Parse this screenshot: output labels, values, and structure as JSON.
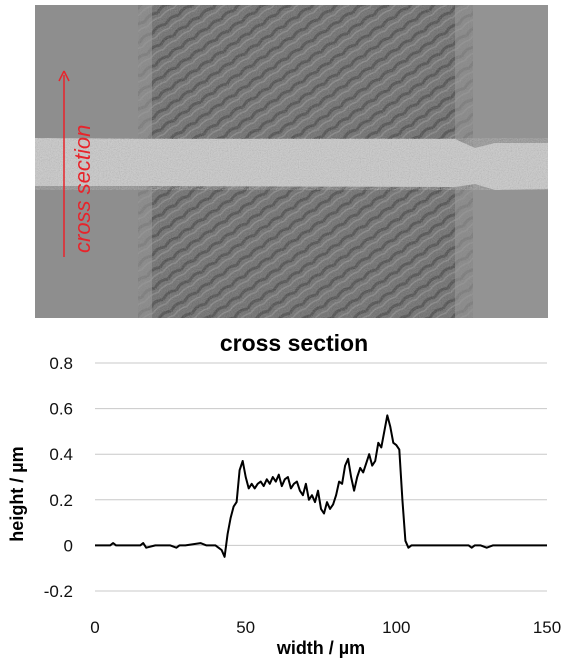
{
  "micrograph": {
    "annotation": "cross section",
    "annotation_color": "#e8242b",
    "background_color": "#8e8e8e",
    "track_color": "#6c6c6c",
    "band_color": "#c8c8c8"
  },
  "chart_data": {
    "type": "line",
    "title": "cross section",
    "xlabel": "width / µm",
    "ylabel": "height / µm",
    "xlim": [
      0,
      150
    ],
    "ylim": [
      -0.2,
      0.8
    ],
    "xticks": [
      0,
      50,
      100,
      150
    ],
    "yticks": [
      -0.2,
      0,
      0.2,
      0.4,
      0.6,
      0.8
    ],
    "ytick_labels": [
      "-0.2",
      "0",
      "0.2",
      "0.4",
      "0.6",
      "0.8"
    ],
    "grid": "horizontal",
    "line_color": "#000000",
    "series": [
      {
        "x": [
          0,
          5,
          6,
          7,
          10,
          15,
          16,
          17,
          20,
          25,
          27,
          28,
          30,
          35,
          37,
          39,
          40,
          41,
          42,
          43,
          44,
          45,
          46,
          47,
          48,
          49,
          50,
          51,
          52,
          53,
          54,
          55,
          56,
          57,
          58,
          59,
          60,
          61,
          62,
          63,
          64,
          65,
          66,
          67,
          68,
          69,
          70,
          71,
          72,
          73,
          74,
          75,
          76,
          77,
          78,
          79,
          80,
          81,
          82,
          83,
          84,
          85,
          86,
          87,
          88,
          89,
          90,
          91,
          92,
          93,
          94,
          95,
          96,
          97,
          98,
          99,
          100,
          101,
          102,
          103,
          104,
          105,
          106,
          110,
          115,
          120,
          124,
          125,
          126,
          128,
          130,
          132,
          135,
          137,
          140,
          145,
          150
        ],
        "y": [
          0,
          0,
          0.01,
          0,
          0,
          0,
          0.01,
          -0.01,
          0,
          0,
          -0.01,
          0,
          0,
          0.01,
          0,
          0,
          0,
          -0.01,
          -0.02,
          -0.05,
          0.05,
          0.12,
          0.17,
          0.19,
          0.33,
          0.37,
          0.3,
          0.25,
          0.27,
          0.25,
          0.27,
          0.28,
          0.26,
          0.29,
          0.27,
          0.3,
          0.28,
          0.31,
          0.26,
          0.29,
          0.3,
          0.25,
          0.27,
          0.28,
          0.24,
          0.22,
          0.27,
          0.2,
          0.22,
          0.19,
          0.24,
          0.16,
          0.14,
          0.19,
          0.16,
          0.18,
          0.22,
          0.28,
          0.27,
          0.35,
          0.38,
          0.3,
          0.24,
          0.3,
          0.34,
          0.32,
          0.36,
          0.4,
          0.35,
          0.37,
          0.45,
          0.43,
          0.5,
          0.57,
          0.52,
          0.45,
          0.44,
          0.42,
          0.2,
          0.02,
          -0.01,
          0,
          0,
          0,
          0,
          0,
          0,
          -0.01,
          0,
          0,
          -0.01,
          0,
          0,
          0,
          0,
          0,
          0
        ]
      }
    ]
  }
}
